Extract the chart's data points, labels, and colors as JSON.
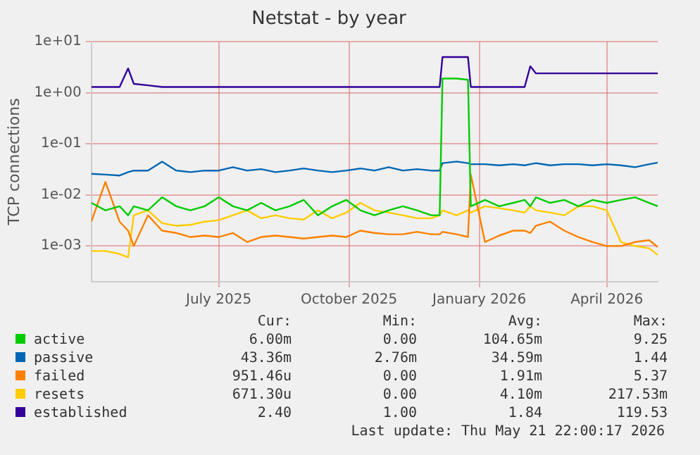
{
  "chart_data": {
    "type": "line",
    "title": "Netstat - by year",
    "ylabel": "TCP connections",
    "x": [
      "2025-04-17",
      "2025-04-27",
      "2025-05-07",
      "2025-05-13",
      "2025-05-17",
      "2025-05-27",
      "2025-06-06",
      "2025-06-16",
      "2025-06-26",
      "2025-07-06",
      "2025-07-16",
      "2025-07-26",
      "2025-08-05",
      "2025-08-15",
      "2025-08-25",
      "2025-09-04",
      "2025-09-14",
      "2025-09-24",
      "2025-10-04",
      "2025-10-14",
      "2025-10-24",
      "2025-11-03",
      "2025-11-13",
      "2025-11-23",
      "2025-12-03",
      "2025-12-13",
      "2025-12-19",
      "2025-12-21",
      "2025-12-31",
      "2026-01-08",
      "2026-01-10",
      "2026-01-20",
      "2026-01-30",
      "2026-02-09",
      "2026-02-17",
      "2026-02-21",
      "2026-02-25",
      "2026-03-07",
      "2026-03-17",
      "2026-03-27",
      "2026-04-06",
      "2026-04-16",
      "2026-04-26",
      "2026-05-06",
      "2026-05-16",
      "2026-05-22"
    ],
    "series": [
      {
        "name": "active",
        "color": "#00cc00",
        "values": [
          0.007,
          0.005,
          0.006,
          0.004,
          0.006,
          0.005,
          0.009,
          0.006,
          0.005,
          0.006,
          0.009,
          0.006,
          0.005,
          0.007,
          0.005,
          0.006,
          0.008,
          0.004,
          0.006,
          0.008,
          0.005,
          0.004,
          0.005,
          0.006,
          0.005,
          0.004,
          0.004,
          1.9,
          1.9,
          1.8,
          0.006,
          0.008,
          0.006,
          0.007,
          0.008,
          0.006,
          0.009,
          0.007,
          0.008,
          0.006,
          0.008,
          0.007,
          0.008,
          0.009,
          0.007,
          0.006
        ]
      },
      {
        "name": "passive",
        "color": "#0066b3",
        "values": [
          0.026,
          0.025,
          0.024,
          0.028,
          0.03,
          0.03,
          0.045,
          0.03,
          0.028,
          0.03,
          0.03,
          0.035,
          0.03,
          0.032,
          0.028,
          0.03,
          0.033,
          0.03,
          0.028,
          0.03,
          0.033,
          0.03,
          0.035,
          0.03,
          0.032,
          0.03,
          0.03,
          0.042,
          0.045,
          0.042,
          0.04,
          0.04,
          0.038,
          0.04,
          0.038,
          0.04,
          0.042,
          0.038,
          0.04,
          0.04,
          0.038,
          0.04,
          0.038,
          0.035,
          0.04,
          0.043
        ]
      },
      {
        "name": "failed",
        "color": "#ff8000",
        "values": [
          0.003,
          0.018,
          0.003,
          0.002,
          0.001,
          0.004,
          0.002,
          0.0018,
          0.0015,
          0.0016,
          0.0015,
          0.0018,
          0.0012,
          0.0015,
          0.0016,
          0.0015,
          0.0014,
          0.0015,
          0.0016,
          0.0015,
          0.002,
          0.0018,
          0.0017,
          0.0017,
          0.0019,
          0.0017,
          0.0017,
          0.0019,
          0.0017,
          0.0015,
          0.025,
          0.0012,
          0.0016,
          0.002,
          0.002,
          0.0018,
          0.0025,
          0.003,
          0.002,
          0.0015,
          0.0012,
          0.001,
          0.001,
          0.0012,
          0.0013,
          0.00095
        ]
      },
      {
        "name": "resets",
        "color": "#ffcc00",
        "values": [
          0.0008,
          0.0008,
          0.0007,
          0.0006,
          0.004,
          0.005,
          0.0028,
          0.0025,
          0.0026,
          0.003,
          0.0032,
          0.004,
          0.005,
          0.0035,
          0.004,
          0.0035,
          0.0033,
          0.005,
          0.0035,
          0.0045,
          0.007,
          0.005,
          0.0045,
          0.004,
          0.0035,
          0.0035,
          0.004,
          0.005,
          0.004,
          0.005,
          0.0045,
          0.006,
          0.0055,
          0.005,
          0.0045,
          0.006,
          0.005,
          0.0045,
          0.004,
          0.006,
          0.006,
          0.005,
          0.0012,
          0.001,
          0.0009,
          0.00067
        ]
      },
      {
        "name": "established",
        "color": "#330099",
        "values": [
          1.3,
          1.3,
          1.3,
          3.0,
          1.5,
          1.4,
          1.3,
          1.3,
          1.3,
          1.3,
          1.3,
          1.3,
          1.3,
          1.3,
          1.3,
          1.3,
          1.3,
          1.3,
          1.3,
          1.3,
          1.3,
          1.3,
          1.3,
          1.3,
          1.3,
          1.3,
          1.3,
          5.0,
          5.0,
          5.0,
          1.3,
          1.3,
          1.3,
          1.3,
          1.3,
          3.3,
          2.4,
          2.4,
          2.4,
          2.4,
          2.4,
          2.4,
          2.4,
          2.4,
          2.4,
          2.4
        ]
      }
    ],
    "log": "y",
    "ylim": [
      0.0002,
      10
    ],
    "yticks": [
      {
        "value": 10,
        "label": "1e+01"
      },
      {
        "value": 1,
        "label": "1e+00"
      },
      {
        "value": 0.1,
        "label": "1e-01"
      },
      {
        "value": 0.01,
        "label": "1e-02"
      },
      {
        "value": 0.001,
        "label": "1e-03"
      }
    ],
    "xlim": [
      "2025-04-17",
      "2026-05-22"
    ],
    "xticks": [
      {
        "value": "2025-07-16",
        "label": "July 2025"
      },
      {
        "value": "2025-10-16",
        "label": "October 2025"
      },
      {
        "value": "2026-01-16",
        "label": "January 2026"
      },
      {
        "value": "2026-04-16",
        "label": "April 2026"
      }
    ],
    "grid": true,
    "legend": "bottom",
    "marker": "none",
    "line_style": "solid",
    "annotations": [
      "Cur:",
      "Min:",
      "Avg:",
      "Max:",
      "6.00m",
      "0.00",
      "104.65m",
      "9.25",
      "43.36m",
      "2.76m",
      "34.59m",
      "1.44",
      "951.46u",
      "0.00",
      "1.91m",
      "5.37",
      "671.30u",
      "0.00",
      "4.10m",
      "217.53m",
      "2.40",
      "1.00",
      "1.84",
      "119.53",
      "Last update: Thu May 21 22:00:17 2026"
    ]
  }
}
